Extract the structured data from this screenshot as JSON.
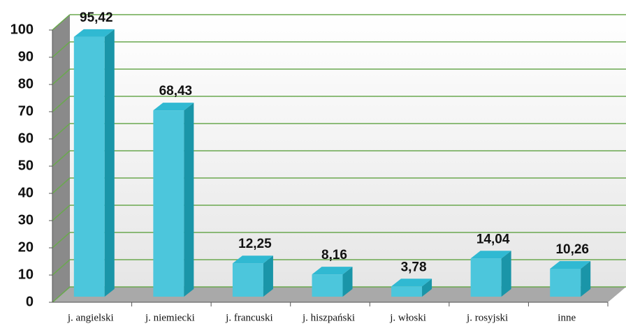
{
  "chart_data": {
    "type": "bar",
    "categories": [
      "j. angielski",
      "j. niemiecki",
      "j. francuski",
      "j. hiszpański",
      "j. włoski",
      "j. rosyjski",
      "inne"
    ],
    "values": [
      95.42,
      68.43,
      12.25,
      8.16,
      3.78,
      14.04,
      10.26
    ],
    "value_labels": [
      "95,42",
      "68,43",
      "12,25",
      "8,16",
      "3,78",
      "14,04",
      "10,26"
    ],
    "color": "#4cc6dc",
    "ylim": [
      0,
      100
    ],
    "yticks": [
      0,
      10,
      20,
      30,
      40,
      50,
      60,
      70,
      80,
      90,
      100
    ],
    "grid": true
  }
}
